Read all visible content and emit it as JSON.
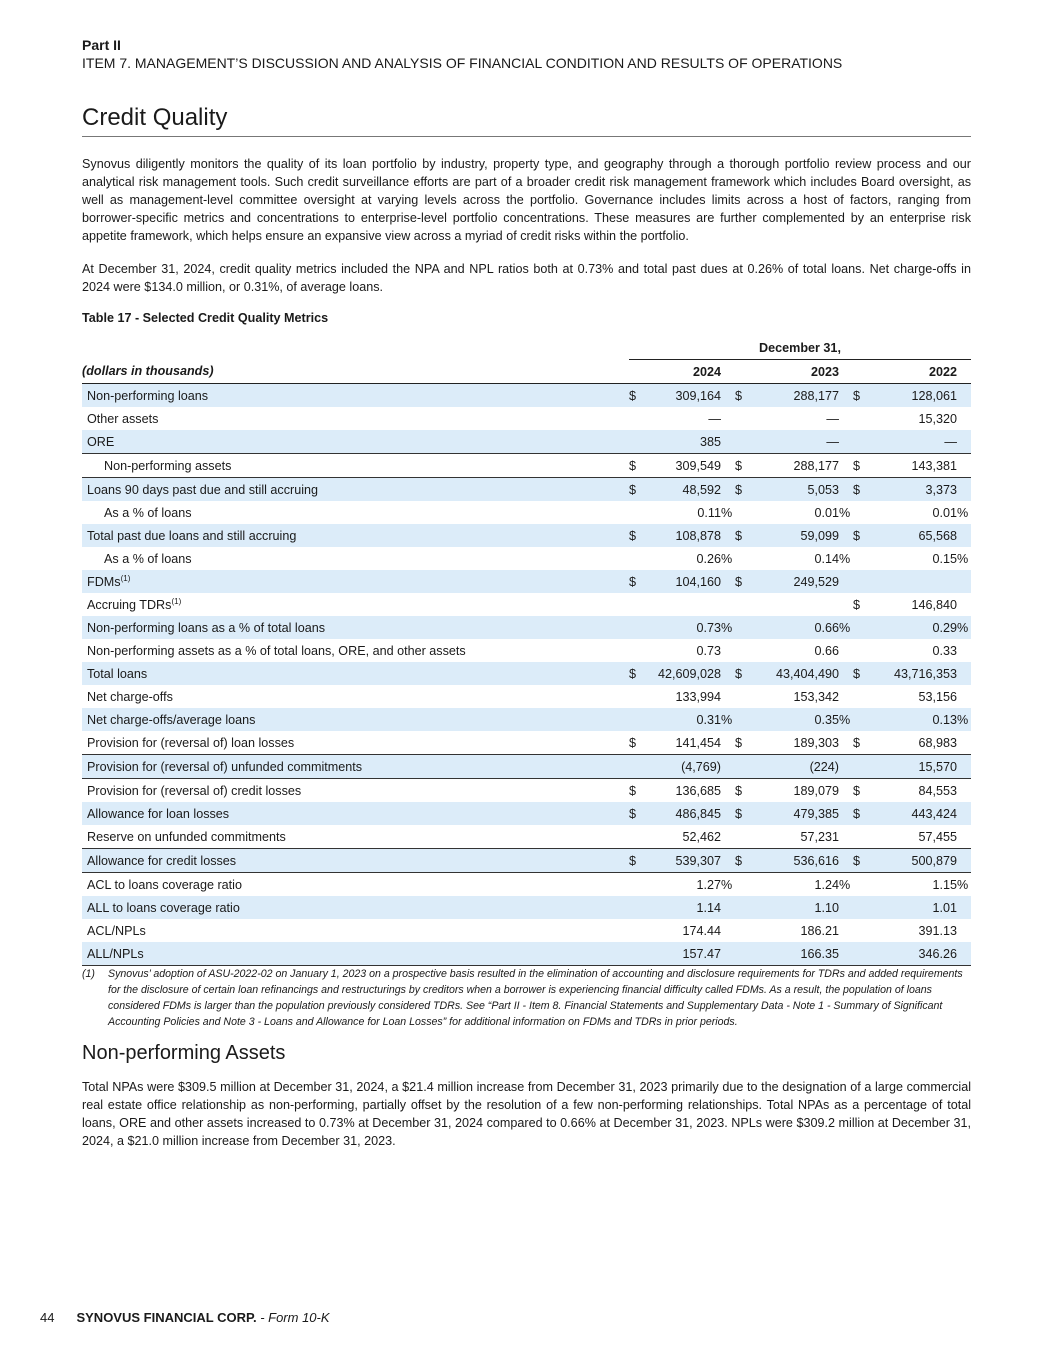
{
  "header": {
    "part": "Part II",
    "item": "ITEM 7. MANAGEMENT’S DISCUSSION AND ANALYSIS OF FINANCIAL CONDITION AND RESULTS OF OPERATIONS"
  },
  "title": "Credit Quality",
  "para1": "Synovus diligently monitors the quality of its loan portfolio by industry, property type, and geography through a thorough portfolio review process and our analytical risk management tools. Such credit surveillance efforts are part of a broader credit risk management framework which includes Board oversight, as well as management-level committee oversight at varying levels across the portfolio. Governance includes limits across a host of factors, ranging from borrower-specific metrics and concentrations to enterprise-level portfolio concentrations. These measures are further complemented by an enterprise risk appetite framework, which helps ensure an expansive view across a myriad of credit risks within the portfolio.",
  "para2": "At December 31, 2024, credit quality metrics included the NPA and NPL ratios both at 0.73% and total past dues at 0.26% of total loans. Net charge-offs in 2024 were $134.0 million, or 0.31%, of average loans.",
  "table": {
    "caption": "Table 17 - Selected Credit Quality Metrics",
    "group_header": "December 31,",
    "unit_label": "(dollars in thousands)",
    "years": [
      "2024",
      "2023",
      "2022"
    ],
    "rows": [
      {
        "label": "Non-performing loans",
        "shade": true,
        "cells": [
          [
            "$",
            "309,164",
            ""
          ],
          [
            "$",
            "288,177",
            ""
          ],
          [
            "$",
            "128,061",
            ""
          ]
        ]
      },
      {
        "label": "Other assets",
        "cells": [
          [
            "",
            "—",
            ""
          ],
          [
            "",
            "—",
            ""
          ],
          [
            "",
            "15,320",
            ""
          ]
        ]
      },
      {
        "label": "ORE",
        "shade": true,
        "line": true,
        "cells": [
          [
            "",
            "385",
            ""
          ],
          [
            "",
            "—",
            ""
          ],
          [
            "",
            "—",
            ""
          ]
        ]
      },
      {
        "label": "Non-performing assets",
        "indent": true,
        "line": true,
        "cells": [
          [
            "$",
            "309,549",
            ""
          ],
          [
            "$",
            "288,177",
            ""
          ],
          [
            "$",
            "143,381",
            ""
          ]
        ]
      },
      {
        "label": "Loans 90 days past due and still accruing",
        "shade": true,
        "cells": [
          [
            "$",
            "48,592",
            ""
          ],
          [
            "$",
            "5,053",
            ""
          ],
          [
            "$",
            "3,373",
            ""
          ]
        ]
      },
      {
        "label": "As a % of loans",
        "indent": true,
        "cells": [
          [
            "",
            "0.11",
            "%"
          ],
          [
            "",
            "0.01",
            "%"
          ],
          [
            "",
            "0.01",
            "%"
          ]
        ]
      },
      {
        "label": "Total past due loans and still accruing",
        "shade": true,
        "cells": [
          [
            "$",
            "108,878",
            ""
          ],
          [
            "$",
            "59,099",
            ""
          ],
          [
            "$",
            "65,568",
            ""
          ]
        ]
      },
      {
        "label": "As a % of loans",
        "indent": true,
        "cells": [
          [
            "",
            "0.26",
            "%"
          ],
          [
            "",
            "0.14",
            "%"
          ],
          [
            "",
            "0.15",
            "%"
          ]
        ]
      },
      {
        "label": "FDMs",
        "sup": "(1)",
        "shade": true,
        "cells": [
          [
            "$",
            "104,160",
            ""
          ],
          [
            "$",
            "249,529",
            ""
          ],
          [
            "",
            "",
            ""
          ]
        ]
      },
      {
        "label": "Accruing TDRs",
        "sup": "(1)",
        "cells": [
          [
            "",
            "",
            ""
          ],
          [
            "",
            "",
            ""
          ],
          [
            "$",
            "146,840",
            ""
          ]
        ]
      },
      {
        "label": "Non-performing loans as a % of total loans",
        "shade": true,
        "cells": [
          [
            "",
            "0.73",
            "%"
          ],
          [
            "",
            "0.66",
            "%"
          ],
          [
            "",
            "0.29",
            "%"
          ]
        ]
      },
      {
        "label": "Non-performing assets as a % of total loans, ORE, and other assets",
        "cells": [
          [
            "",
            "0.73",
            ""
          ],
          [
            "",
            "0.66",
            ""
          ],
          [
            "",
            "0.33",
            ""
          ]
        ]
      },
      {
        "label": "Total loans",
        "shade": true,
        "cells": [
          [
            "$",
            "42,609,028",
            ""
          ],
          [
            "$",
            "43,404,490",
            ""
          ],
          [
            "$",
            "43,716,353",
            ""
          ]
        ]
      },
      {
        "label": "Net charge-offs",
        "cells": [
          [
            "",
            "133,994",
            ""
          ],
          [
            "",
            "153,342",
            ""
          ],
          [
            "",
            "53,156",
            ""
          ]
        ]
      },
      {
        "label": "Net charge-offs/average loans",
        "shade": true,
        "cells": [
          [
            "",
            "0.31",
            "%"
          ],
          [
            "",
            "0.35",
            "%"
          ],
          [
            "",
            "0.13",
            "%"
          ]
        ]
      },
      {
        "label": "Provision for (reversal of) loan losses",
        "line": true,
        "cells": [
          [
            "$",
            "141,454",
            ""
          ],
          [
            "$",
            "189,303",
            ""
          ],
          [
            "$",
            "68,983",
            ""
          ]
        ]
      },
      {
        "label": "Provision for (reversal of) unfunded commitments",
        "shade": true,
        "line": true,
        "cells": [
          [
            "",
            "(4,769)",
            ""
          ],
          [
            "",
            "(224)",
            ""
          ],
          [
            "",
            "15,570",
            ""
          ]
        ]
      },
      {
        "label": "Provision for (reversal of) credit losses",
        "cells": [
          [
            "$",
            "136,685",
            ""
          ],
          [
            "$",
            "189,079",
            ""
          ],
          [
            "$",
            "84,553",
            ""
          ]
        ]
      },
      {
        "label": "Allowance for loan losses",
        "shade": true,
        "cells": [
          [
            "$",
            "486,845",
            ""
          ],
          [
            "$",
            "479,385",
            ""
          ],
          [
            "$",
            "443,424",
            ""
          ]
        ]
      },
      {
        "label": "Reserve on unfunded commitments",
        "line": true,
        "cells": [
          [
            "",
            "52,462",
            ""
          ],
          [
            "",
            "57,231",
            ""
          ],
          [
            "",
            "57,455",
            ""
          ]
        ]
      },
      {
        "label": "Allowance for credit losses",
        "shade": true,
        "line": true,
        "cells": [
          [
            "$",
            "539,307",
            ""
          ],
          [
            "$",
            "536,616",
            ""
          ],
          [
            "$",
            "500,879",
            ""
          ]
        ]
      },
      {
        "label": "ACL to loans coverage ratio",
        "cells": [
          [
            "",
            "1.27",
            "%"
          ],
          [
            "",
            "1.24",
            "%"
          ],
          [
            "",
            "1.15",
            "%"
          ]
        ]
      },
      {
        "label": "ALL to loans coverage ratio",
        "shade": true,
        "cells": [
          [
            "",
            "1.14",
            ""
          ],
          [
            "",
            "1.10",
            ""
          ],
          [
            "",
            "1.01",
            ""
          ]
        ]
      },
      {
        "label": "ACL/NPLs",
        "cells": [
          [
            "",
            "174.44",
            ""
          ],
          [
            "",
            "186.21",
            ""
          ],
          [
            "",
            "391.13",
            ""
          ]
        ]
      },
      {
        "label": "ALL/NPLs",
        "shade": true,
        "line": true,
        "cells": [
          [
            "",
            "157.47",
            ""
          ],
          [
            "",
            "166.35",
            ""
          ],
          [
            "",
            "346.26",
            ""
          ]
        ]
      }
    ]
  },
  "footnote": {
    "num": "(1)",
    "text": "Synovus’ adoption of ASU-2022-02 on January 1, 2023 on a prospective basis resulted in the elimination of accounting and disclosure requirements for TDRs and added requirements for the disclosure of certain loan refinancings and restructurings by creditors when a borrower is experiencing financial difficulty called FDMs. As a result, the population of loans considered FDMs is larger than the population previously considered TDRs. See “Part II - Item 8. Financial Statements and Supplementary Data - Note 1 - Summary of Significant Accounting Policies and Note 3 - Loans and Allowance for Loan Losses” for additional information on FDMs and TDRs in prior periods."
  },
  "section2": {
    "title": "Non-performing Assets",
    "para": "Total NPAs were $309.5 million at December 31, 2024, a $21.4 million increase from December 31, 2023 primarily due to the designation of a large commercial real estate office relationship as non-performing, partially offset by the resolution of a few non-performing relationships. Total NPAs as a percentage of total loans, ORE and other assets increased to 0.73% at December 31, 2024 compared to 0.66% at December 31, 2023. NPLs were $309.2 million at December 31, 2024, a $21.0 million increase from December 31, 2023."
  },
  "footer": {
    "page": "44",
    "company": "SYNOVUS FINANCIAL CORP.",
    "form": " - Form 10-K"
  }
}
